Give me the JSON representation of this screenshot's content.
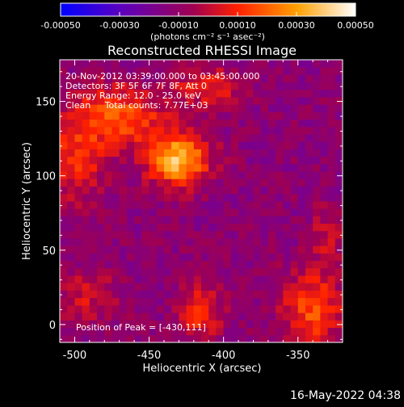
{
  "chart_data": {
    "type": "heatmap",
    "title": "Reconstructed RHESSI Image",
    "xlabel": "Heliocentric X (arcsec)",
    "ylabel": "Heliocentric Y (arcsec)",
    "xlim": [
      -510,
      -320
    ],
    "ylim": [
      -12,
      178
    ],
    "x_ticks": [
      -500,
      -450,
      -400,
      -350
    ],
    "x_tick_labels": [
      "-500",
      "-450",
      "-400",
      "-350"
    ],
    "y_ticks": [
      0,
      50,
      100,
      150
    ],
    "y_tick_labels": [
      "0",
      "50",
      "100",
      "150"
    ],
    "colorbar": {
      "range": [
        -0.0005,
        0.0005
      ],
      "ticks": [
        -0.0005,
        -0.0003,
        -0.0001,
        0.0001,
        0.0003,
        0.0005
      ],
      "tick_labels": [
        "-0.00050",
        "-0.00030",
        "-0.00010",
        "0.00010",
        "0.00030",
        "0.00050"
      ],
      "units_label": "(photons cm⁻² s⁻¹ asec⁻²)",
      "colors": [
        "#0000ff",
        "#5a00c0",
        "#a00050",
        "#ff2000",
        "#ffa000",
        "#ffffff"
      ]
    },
    "sources": [
      {
        "x": -430,
        "y": 111,
        "amplitude": 0.00048,
        "sigma_x": 14,
        "sigma_y": 12
      },
      {
        "x": -470,
        "y": 140,
        "amplitude": 0.0003,
        "sigma_x": 22,
        "sigma_y": 14
      },
      {
        "x": -500,
        "y": 110,
        "amplitude": 0.00022,
        "sigma_x": 14,
        "sigma_y": 18
      },
      {
        "x": -410,
        "y": 160,
        "amplitude": 0.0002,
        "sigma_x": 16,
        "sigma_y": 10
      },
      {
        "x": -340,
        "y": 10,
        "amplitude": 0.00028,
        "sigma_x": 14,
        "sigma_y": 18
      },
      {
        "x": -415,
        "y": 8,
        "amplitude": 0.00022,
        "sigma_x": 10,
        "sigma_y": 14
      },
      {
        "x": -490,
        "y": 20,
        "amplitude": 0.00014,
        "sigma_x": 14,
        "sigma_y": 14
      },
      {
        "x": -330,
        "y": 60,
        "amplitude": 0.00012,
        "sigma_x": 8,
        "sigma_y": 14
      }
    ],
    "background": -0.00012,
    "annotations": [
      "20-Nov-2012 03:39:00.000 to 03:45:00.000",
      "Detectors: 3F 5F 6F 7F 8F, Att 0",
      "Energy Range: 12.0 - 25.0 keV",
      "Clean     Total counts: 7.77E+03"
    ],
    "peak_label": "Position of Peak = [-430,111]",
    "peak_position": [
      -430,
      111
    ]
  },
  "footer": {
    "timestamp": "16-May-2022 04:38"
  }
}
